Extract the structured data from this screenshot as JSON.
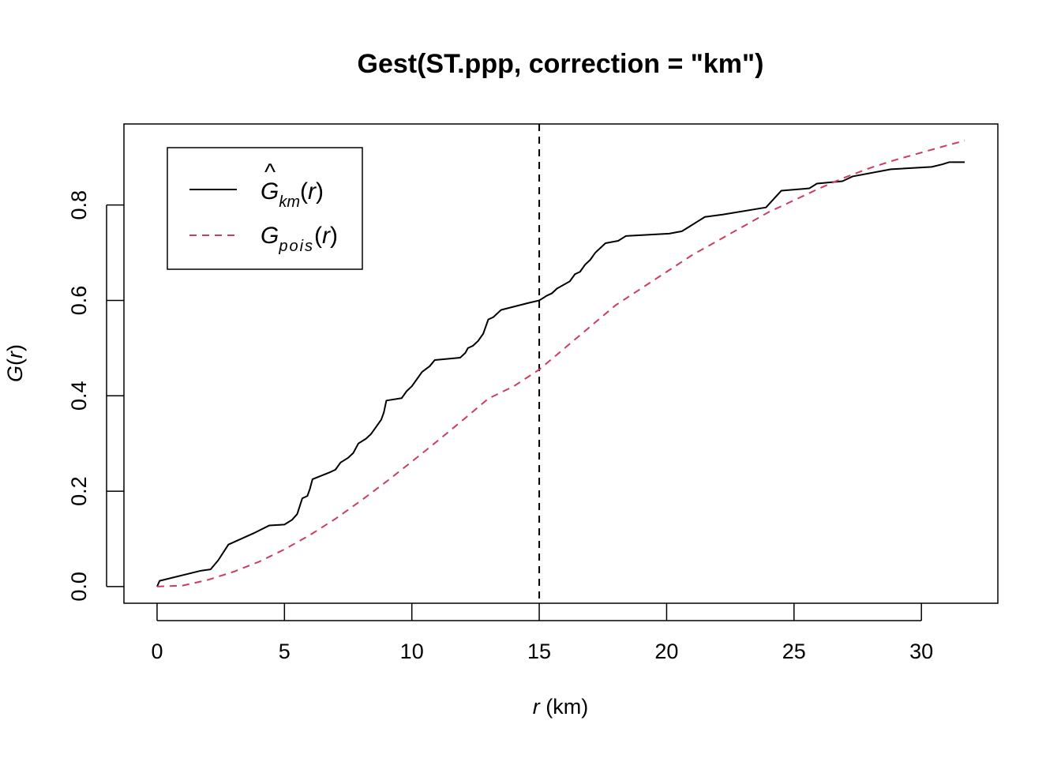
{
  "chart_data": {
    "type": "line",
    "title": "Gest(ST.ppp, correction = \"km\")",
    "xlabel": {
      "var": "r",
      "unit": "(km)"
    },
    "ylabel": {
      "var": "G",
      "arg": "r"
    },
    "xlim": [
      -1.3,
      33.0
    ],
    "ylim": [
      -0.035,
      0.97
    ],
    "x_ticks": [
      0,
      5,
      10,
      15,
      20,
      25,
      30
    ],
    "y_ticks": [
      0.0,
      0.2,
      0.4,
      0.6,
      0.8
    ],
    "x_tick_labels": [
      "0",
      "5",
      "10",
      "15",
      "20",
      "25",
      "30"
    ],
    "y_tick_labels": [
      "0.0",
      "0.2",
      "0.4",
      "0.6",
      "0.8"
    ],
    "vline": {
      "x": 15,
      "color": "#000000",
      "style": "dashed"
    },
    "legend": {
      "position": "top-left",
      "entries": [
        {
          "main": "G",
          "hat": "^",
          "sub": "km",
          "arg": "r",
          "color": "#000000",
          "style": "solid"
        },
        {
          "main": "G",
          "hat": "",
          "sub": "pois",
          "arg": "r",
          "color": "#CD3C5E",
          "style": "dashed"
        }
      ]
    },
    "series": [
      {
        "style": "step",
        "color": "#000000",
        "points": [
          [
            0.0,
            0.0
          ],
          [
            0.1,
            0.012
          ],
          [
            1.7,
            0.033
          ],
          [
            2.1,
            0.036
          ],
          [
            2.4,
            0.055
          ],
          [
            2.8,
            0.088
          ],
          [
            3.3,
            0.1
          ],
          [
            3.8,
            0.112
          ],
          [
            4.1,
            0.12
          ],
          [
            4.4,
            0.128
          ],
          [
            5.0,
            0.13
          ],
          [
            5.3,
            0.14
          ],
          [
            5.5,
            0.152
          ],
          [
            5.7,
            0.185
          ],
          [
            5.9,
            0.19
          ],
          [
            6.0,
            0.205
          ],
          [
            6.1,
            0.225
          ],
          [
            6.8,
            0.24
          ],
          [
            7.0,
            0.245
          ],
          [
            7.2,
            0.26
          ],
          [
            7.5,
            0.27
          ],
          [
            7.7,
            0.28
          ],
          [
            7.9,
            0.3
          ],
          [
            8.2,
            0.31
          ],
          [
            8.4,
            0.32
          ],
          [
            8.6,
            0.335
          ],
          [
            8.8,
            0.35
          ],
          [
            8.9,
            0.365
          ],
          [
            9.0,
            0.39
          ],
          [
            9.6,
            0.395
          ],
          [
            9.8,
            0.41
          ],
          [
            10.0,
            0.42
          ],
          [
            10.2,
            0.435
          ],
          [
            10.4,
            0.45
          ],
          [
            10.7,
            0.462
          ],
          [
            10.9,
            0.475
          ],
          [
            11.9,
            0.48
          ],
          [
            12.1,
            0.49
          ],
          [
            12.2,
            0.5
          ],
          [
            12.4,
            0.505
          ],
          [
            12.6,
            0.515
          ],
          [
            12.8,
            0.53
          ],
          [
            12.9,
            0.545
          ],
          [
            13.0,
            0.56
          ],
          [
            13.2,
            0.565
          ],
          [
            13.4,
            0.575
          ],
          [
            13.5,
            0.58
          ],
          [
            14.6,
            0.595
          ],
          [
            15.0,
            0.6
          ],
          [
            15.3,
            0.61
          ],
          [
            15.5,
            0.615
          ],
          [
            15.7,
            0.625
          ],
          [
            16.2,
            0.64
          ],
          [
            16.4,
            0.655
          ],
          [
            16.6,
            0.66
          ],
          [
            16.8,
            0.675
          ],
          [
            17.0,
            0.685
          ],
          [
            17.2,
            0.7
          ],
          [
            17.4,
            0.71
          ],
          [
            17.6,
            0.72
          ],
          [
            18.1,
            0.725
          ],
          [
            18.4,
            0.735
          ],
          [
            20.1,
            0.74
          ],
          [
            20.6,
            0.745
          ],
          [
            20.9,
            0.755
          ],
          [
            21.2,
            0.765
          ],
          [
            21.5,
            0.775
          ],
          [
            22.2,
            0.78
          ],
          [
            23.9,
            0.795
          ],
          [
            24.5,
            0.83
          ],
          [
            25.6,
            0.835
          ],
          [
            25.9,
            0.845
          ],
          [
            26.9,
            0.85
          ],
          [
            27.3,
            0.86
          ],
          [
            28.8,
            0.875
          ],
          [
            30.4,
            0.88
          ],
          [
            30.8,
            0.885
          ],
          [
            31.1,
            0.89
          ],
          [
            31.7,
            0.89
          ]
        ]
      },
      {
        "style": "smooth",
        "color": "#CD3C5E",
        "points": [
          [
            0,
            0.0
          ],
          [
            1,
            0.002
          ],
          [
            2,
            0.014
          ],
          [
            3,
            0.031
          ],
          [
            4,
            0.052
          ],
          [
            5,
            0.078
          ],
          [
            6,
            0.108
          ],
          [
            7,
            0.142
          ],
          [
            8,
            0.18
          ],
          [
            9,
            0.22
          ],
          [
            10,
            0.262
          ],
          [
            11,
            0.305
          ],
          [
            12,
            0.349
          ],
          [
            13,
            0.394
          ],
          [
            14,
            0.42
          ],
          [
            15,
            0.455
          ],
          [
            16,
            0.5
          ],
          [
            17,
            0.545
          ],
          [
            18,
            0.59
          ],
          [
            19,
            0.625
          ],
          [
            20,
            0.66
          ],
          [
            21,
            0.695
          ],
          [
            22,
            0.725
          ],
          [
            23,
            0.755
          ],
          [
            24,
            0.785
          ],
          [
            25,
            0.81
          ],
          [
            26,
            0.835
          ],
          [
            27,
            0.858
          ],
          [
            28,
            0.878
          ],
          [
            29,
            0.895
          ],
          [
            30,
            0.91
          ],
          [
            31,
            0.925
          ],
          [
            31.7,
            0.935
          ]
        ]
      }
    ]
  }
}
